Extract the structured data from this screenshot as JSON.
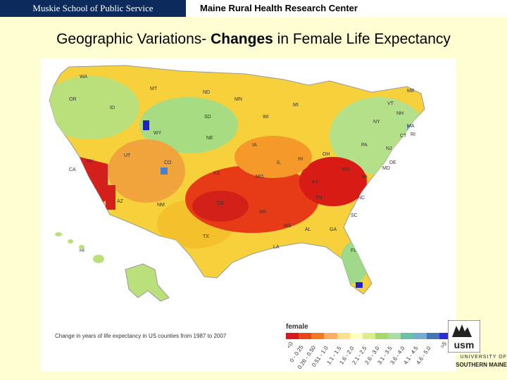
{
  "header": {
    "left_text": "Muskie School of Public Service",
    "right_text": "Maine Rural Health Research Center"
  },
  "title": {
    "part1": "Geographic Variations- ",
    "bold": "Changes",
    "part2": " in Female Life Expectancy"
  },
  "map": {
    "caption": "Change in years of life expectancy in US counties from 1987 to 2007",
    "legend_title": "female",
    "legend": [
      {
        "label": "<0",
        "color": "#d7191c"
      },
      {
        "label": "0 - 0.25",
        "color": "#e8451b"
      },
      {
        "label": "0.26 - 0.50",
        "color": "#f4781e"
      },
      {
        "label": "0.51 - 1.0",
        "color": "#fdae61"
      },
      {
        "label": "1.1 - 1.5",
        "color": "#fee08b"
      },
      {
        "label": "1.6 - 2.0",
        "color": "#ffffbf"
      },
      {
        "label": "2.1 - 2.5",
        "color": "#d9ef8b"
      },
      {
        "label": "2.6 - 3.0",
        "color": "#a6d96a"
      },
      {
        "label": "3.1 - 3.5",
        "color": "#abdda4"
      },
      {
        "label": "3.6 - 4.0",
        "color": "#66c2a5"
      },
      {
        "label": "4.1 - 4.5",
        "color": "#74add1"
      },
      {
        "label": "4.6 - 5.0",
        "color": "#4575b4"
      },
      {
        "label": ">5",
        "color": "#2b2bd9"
      }
    ],
    "state_labels": [
      "WA",
      "OR",
      "ID",
      "MT",
      "ND",
      "MN",
      "WI",
      "MI",
      "ME",
      "VT",
      "NH",
      "NY",
      "MA",
      "CT",
      "RI",
      "PA",
      "NJ",
      "DE",
      "MD",
      "SD",
      "WY",
      "NE",
      "IA",
      "IL",
      "IN",
      "OH",
      "WV",
      "VA",
      "NV",
      "UT",
      "CO",
      "KS",
      "MO",
      "KY",
      "TN",
      "NC",
      "SC",
      "CA",
      "AZ",
      "NM",
      "OK",
      "AR",
      "MS",
      "AL",
      "GA",
      "TX",
      "LA",
      "FL",
      "AK",
      "HI"
    ]
  },
  "logo": {
    "university_text": "UNIVERSITY OF",
    "maine_text": "SOUTHERN MAINE",
    "mark_text": "usm"
  }
}
